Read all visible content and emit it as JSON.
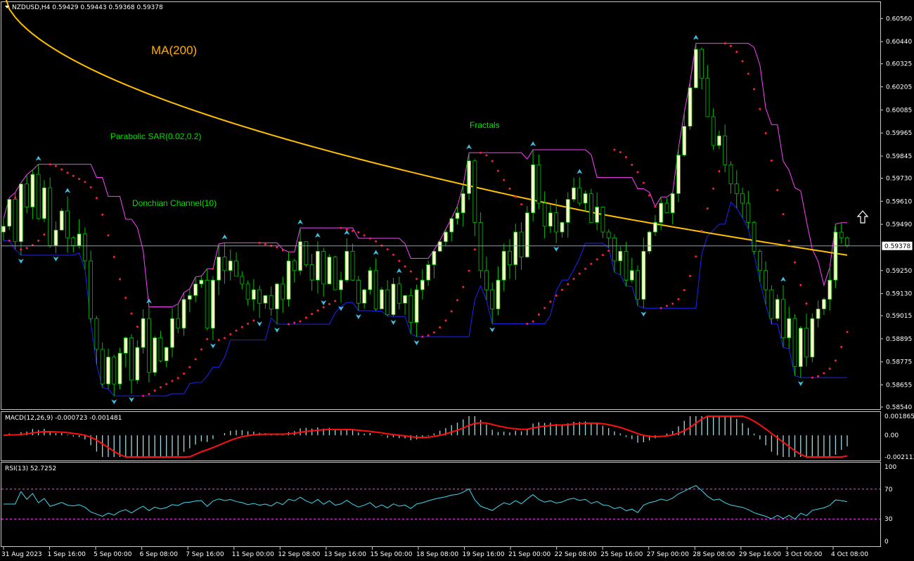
{
  "header": {
    "symbol_ohlc": "NZDUSD,H4  0.59429 0.59443 0.59368 0.59378"
  },
  "annotations": {
    "ma_label": "MA(200)",
    "sar_label": "Parabolic SAR(0.02,0.2)",
    "donchian_label": "Donchian Channel(10)",
    "fractals_label": "Fractals"
  },
  "price_axis": {
    "ticks": [
      "0.60560",
      "0.60440",
      "0.60325",
      "0.60205",
      "0.60085",
      "0.59965",
      "0.59845",
      "0.59730",
      "0.59610",
      "0.59490",
      "0.59250",
      "0.59130",
      "0.59015",
      "0.58895",
      "0.58775",
      "0.58655",
      "0.58540"
    ],
    "current_price": "0.59378"
  },
  "macd": {
    "label": "MACD(12,26,9) -0.000723 -0.001481",
    "ticks": [
      "0.001865",
      "0.00",
      "-0.002113"
    ]
  },
  "rsi": {
    "label": "RSI(13) 52.7252",
    "ticks": [
      "100",
      "70",
      "30",
      "0"
    ]
  },
  "time_axis": {
    "labels": [
      "31 Aug 2023",
      "1 Sep 16:00",
      "5 Sep 00:00",
      "6 Sep 08:00",
      "7 Sep 16:00",
      "11 Sep 00:00",
      "12 Sep 08:00",
      "13 Sep 16:00",
      "15 Sep 00:00",
      "18 Sep 08:00",
      "19 Sep 16:00",
      "21 Sep 00:00",
      "22 Sep 08:00",
      "25 Sep 16:00",
      "27 Sep 00:00",
      "28 Sep 08:00",
      "29 Sep 16:00",
      "3 Oct 00:00",
      "4 Oct 08:00"
    ]
  },
  "colors": {
    "background": "#000000",
    "bull_candle": "#ffffcc",
    "bear_candle": "#000000",
    "candle_wick": "#00c000",
    "ma": "#ffc000",
    "donchian_upper": "#ff40ff",
    "donchian_lower": "#2020ff",
    "sar": "#ff2040",
    "fractal": "#40c0e0",
    "macd_hist": "#a0d8e0",
    "macd_signal": "#ff1010",
    "rsi_line": "#40d8f0",
    "rsi_levels": "#ff40ff",
    "annotation_green": "#00e000",
    "annotation_orange": "#ffb000",
    "axis_text": "#ffffff"
  },
  "chart_data": {
    "type": "candlestick",
    "symbol": "NZDUSD",
    "timeframe": "H4",
    "ylim": [
      0.5854,
      0.6062
    ],
    "current_price": 0.59378,
    "closes": [
      0.5948,
      0.5962,
      0.594,
      0.597,
      0.5958,
      0.5975,
      0.5952,
      0.5968,
      0.5938,
      0.5946,
      0.5956,
      0.5942,
      0.5938,
      0.5944,
      0.593,
      0.59,
      0.5884,
      0.5866,
      0.588,
      0.5866,
      0.5882,
      0.589,
      0.5868,
      0.5885,
      0.59,
      0.5872,
      0.589,
      0.5878,
      0.5885,
      0.59,
      0.5895,
      0.591,
      0.5912,
      0.5918,
      0.592,
      0.5895,
      0.592,
      0.5932,
      0.5925,
      0.593,
      0.5922,
      0.5918,
      0.591,
      0.5915,
      0.5908,
      0.5912,
      0.5905,
      0.5918,
      0.591,
      0.593,
      0.5925,
      0.594,
      0.5928,
      0.592,
      0.5935,
      0.5918,
      0.5932,
      0.5915,
      0.592,
      0.5935,
      0.592,
      0.5908,
      0.5915,
      0.5925,
      0.5905,
      0.5915,
      0.5902,
      0.5918,
      0.5908,
      0.5912,
      0.5898,
      0.5915,
      0.592,
      0.5928,
      0.5935,
      0.594,
      0.5945,
      0.5952,
      0.5955,
      0.5965,
      0.5982,
      0.595,
      0.5925,
      0.5915,
      0.5905,
      0.592,
      0.5935,
      0.5928,
      0.5945,
      0.5932,
      0.5955,
      0.598,
      0.596,
      0.5948,
      0.5955,
      0.5945,
      0.595,
      0.5962,
      0.5968,
      0.596,
      0.5965,
      0.595,
      0.5958,
      0.5945,
      0.5942,
      0.593,
      0.5935,
      0.592,
      0.5925,
      0.591,
      0.5935,
      0.5945,
      0.595,
      0.596,
      0.5955,
      0.5965,
      0.5985,
      0.6,
      0.602,
      0.604,
      0.6025,
      0.6005,
      0.599,
      0.5995,
      0.598,
      0.597,
      0.5965,
      0.596,
      0.595,
      0.5935,
      0.5925,
      0.5915,
      0.59,
      0.591,
      0.589,
      0.59,
      0.5875,
      0.5895,
      0.588,
      0.59,
      0.5905,
      0.591,
      0.592,
      0.5945,
      0.5942,
      0.5938
    ]
  }
}
